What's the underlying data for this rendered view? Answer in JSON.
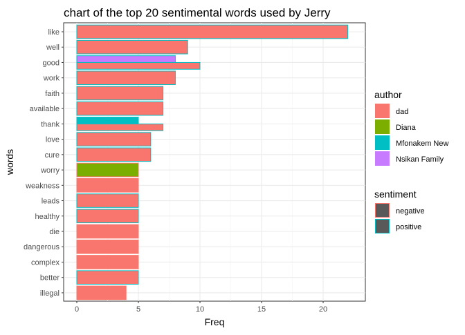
{
  "chart_data": {
    "type": "bar",
    "orientation": "horizontal",
    "title": "chart of the top 20 sentimental words used by Jerry",
    "xlabel": "Freq",
    "ylabel": "words",
    "xlim": [
      0,
      22.5
    ],
    "xticks": [
      0,
      5,
      10,
      15,
      20
    ],
    "grid": true,
    "categories": [
      "like",
      "well",
      "good",
      "work",
      "faith",
      "available",
      "thank",
      "love",
      "cure",
      "worry",
      "weakness",
      "leads",
      "healthy",
      "die",
      "dangerous",
      "complex",
      "better",
      "illegal"
    ],
    "bars": [
      {
        "word": "like",
        "value": 22,
        "author": "dad",
        "sentiment": "positive",
        "slot": "full"
      },
      {
        "word": "well",
        "value": 9,
        "author": "dad",
        "sentiment": "positive",
        "slot": "full"
      },
      {
        "word": "good",
        "value": 8,
        "author": "Nsikan Family",
        "sentiment": "positive",
        "slot": "upper"
      },
      {
        "word": "good",
        "value": 10,
        "author": "dad",
        "sentiment": "positive",
        "slot": "lower"
      },
      {
        "word": "work",
        "value": 8,
        "author": "dad",
        "sentiment": "positive",
        "slot": "full"
      },
      {
        "word": "faith",
        "value": 7,
        "author": "dad",
        "sentiment": "positive",
        "slot": "full"
      },
      {
        "word": "available",
        "value": 7,
        "author": "dad",
        "sentiment": "positive",
        "slot": "full"
      },
      {
        "word": "thank",
        "value": 5,
        "author": "Mfonakem New",
        "sentiment": "positive",
        "slot": "upper"
      },
      {
        "word": "thank",
        "value": 7,
        "author": "dad",
        "sentiment": "positive",
        "slot": "lower"
      },
      {
        "word": "love",
        "value": 6,
        "author": "dad",
        "sentiment": "positive",
        "slot": "full"
      },
      {
        "word": "cure",
        "value": 6,
        "author": "dad",
        "sentiment": "positive",
        "slot": "full"
      },
      {
        "word": "worry",
        "value": 5,
        "author": "Diana",
        "sentiment": "negative",
        "slot": "full"
      },
      {
        "word": "weakness",
        "value": 5,
        "author": "dad",
        "sentiment": "negative",
        "slot": "full"
      },
      {
        "word": "leads",
        "value": 5,
        "author": "dad",
        "sentiment": "positive",
        "slot": "full"
      },
      {
        "word": "healthy",
        "value": 5,
        "author": "dad",
        "sentiment": "positive",
        "slot": "full"
      },
      {
        "word": "die",
        "value": 5,
        "author": "dad",
        "sentiment": "negative",
        "slot": "full"
      },
      {
        "word": "dangerous",
        "value": 5,
        "author": "dad",
        "sentiment": "negative",
        "slot": "full"
      },
      {
        "word": "complex",
        "value": 5,
        "author": "dad",
        "sentiment": "negative",
        "slot": "full"
      },
      {
        "word": "better",
        "value": 5,
        "author": "dad",
        "sentiment": "positive",
        "slot": "full"
      },
      {
        "word": "illegal",
        "value": 4,
        "author": "dad",
        "sentiment": "negative",
        "slot": "full"
      }
    ],
    "legend_author": {
      "title": "author",
      "entries": [
        {
          "label": "dad",
          "color": "#F8766D"
        },
        {
          "label": "Diana",
          "color": "#7CAE00"
        },
        {
          "label": "Mfonakem New",
          "color": "#00BFC4"
        },
        {
          "label": "Nsikan Family",
          "color": "#C77CFF"
        }
      ]
    },
    "legend_sentiment": {
      "title": "sentiment",
      "entries": [
        {
          "label": "negative",
          "color": "#F8766D"
        },
        {
          "label": "positive",
          "color": "#00BFC4"
        }
      ]
    },
    "legend_position": "right"
  }
}
